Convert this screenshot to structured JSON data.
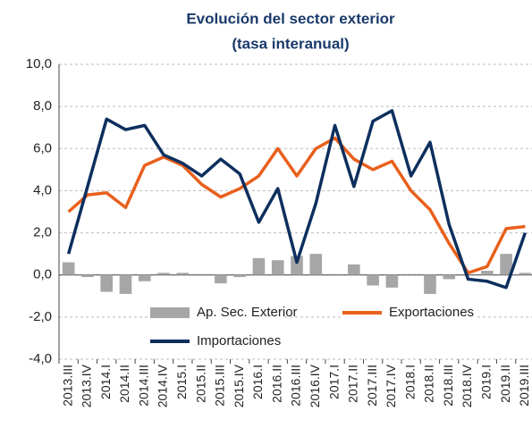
{
  "chart_data": {
    "type": "bar_line",
    "title": "Evolución  del sector exterior",
    "subtitle": "(tasa interanual)",
    "categories": [
      "2013.III",
      "2013.IV",
      "2014.I",
      "2014.II",
      "2014.III",
      "2014.IV",
      "2015.I",
      "2015.II",
      "2015.III",
      "2015.IV",
      "2016.I",
      "2016.II",
      "2016.III",
      "2016.IV",
      "2017.I",
      "2017.II",
      "2017.III",
      "2017.IV",
      "2018.I",
      "2018.II",
      "2018.III",
      "2018.IV",
      "2019.I",
      "2019.II",
      "2019.III"
    ],
    "series": [
      {
        "name": "Ap. Sec. Exterior",
        "kind": "bar",
        "color": "#a6a6a6",
        "values": [
          0.6,
          -0.1,
          -0.8,
          -0.9,
          -0.3,
          0.1,
          0.1,
          0.0,
          -0.4,
          -0.1,
          0.8,
          0.7,
          0.9,
          1.0,
          0.0,
          0.5,
          -0.5,
          -0.6,
          0.0,
          -0.9,
          -0.2,
          0.0,
          0.2,
          1.0,
          0.1
        ]
      },
      {
        "name": "Exportaciones",
        "kind": "line",
        "color": "#e8601c",
        "values": [
          3.0,
          3.8,
          3.9,
          3.2,
          5.2,
          5.6,
          5.2,
          4.3,
          3.7,
          4.1,
          4.7,
          6.0,
          4.7,
          6.0,
          6.5,
          5.5,
          5.0,
          5.4,
          4.0,
          3.1,
          1.5,
          0.1,
          0.4,
          2.2,
          2.3
        ]
      },
      {
        "name": "Importaciones",
        "kind": "line",
        "color": "#0d2f5e",
        "values": [
          1.0,
          4.2,
          7.4,
          6.9,
          7.1,
          5.7,
          5.3,
          4.7,
          5.5,
          4.8,
          2.5,
          4.1,
          0.6,
          3.4,
          7.1,
          4.2,
          7.3,
          7.8,
          4.7,
          6.3,
          2.4,
          -0.2,
          -0.3,
          -0.6,
          2.0
        ]
      }
    ],
    "ylim": [
      -4,
      10
    ],
    "yticks": [
      {
        "value": -4,
        "label": "-4,0"
      },
      {
        "value": -2,
        "label": "-2,0"
      },
      {
        "value": 0,
        "label": "0,0"
      },
      {
        "value": 2,
        "label": "2,0"
      },
      {
        "value": 4,
        "label": "4,0"
      },
      {
        "value": 6,
        "label": "6,0"
      },
      {
        "value": 8,
        "label": "8,0"
      },
      {
        "value": 10,
        "label": "10,0"
      }
    ],
    "grid": true
  }
}
